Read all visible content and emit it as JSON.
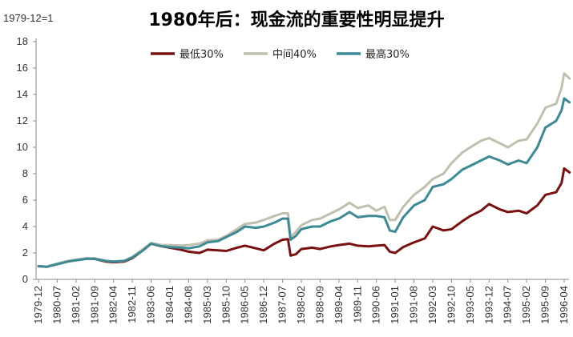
{
  "chart_data": {
    "type": "line",
    "title": "1980年后：现金流的重要性明显提升",
    "note": "1979-12=1",
    "xlabel": "",
    "ylabel": "",
    "ylim": [
      0,
      18
    ],
    "yticks": [
      0,
      2,
      4,
      6,
      8,
      10,
      12,
      14,
      16,
      18
    ],
    "grid": false,
    "legend": "top-center",
    "x_tick_labels": [
      "1979-12",
      "1980-07",
      "1981-02",
      "1981-09",
      "1982-04",
      "1982-11",
      "1983-06",
      "1984-01",
      "1984-08",
      "1985-03",
      "1985-10",
      "1986-05",
      "1986-12",
      "1987-07",
      "1988-02",
      "1988-09",
      "1989-04",
      "1989-11",
      "1990-06",
      "1991-01",
      "1991-08",
      "1992-03",
      "1992-10",
      "1993-05",
      "1993-12",
      "1994-07",
      "1995-02",
      "1995-09",
      "1996-04"
    ],
    "x": [
      "1979-12",
      "1980-03",
      "1980-07",
      "1980-11",
      "1981-02",
      "1981-06",
      "1981-09",
      "1982-01",
      "1982-04",
      "1982-08",
      "1982-11",
      "1983-03",
      "1983-06",
      "1983-10",
      "1984-01",
      "1984-05",
      "1984-08",
      "1984-12",
      "1985-03",
      "1985-07",
      "1985-10",
      "1986-02",
      "1986-05",
      "1986-09",
      "1986-12",
      "1987-04",
      "1987-07",
      "1987-09",
      "1987-10",
      "1987-12",
      "1988-02",
      "1988-06",
      "1988-09",
      "1989-01",
      "1989-04",
      "1989-08",
      "1989-11",
      "1990-03",
      "1990-06",
      "1990-09",
      "1990-11",
      "1991-01",
      "1991-04",
      "1991-08",
      "1991-12",
      "1992-03",
      "1992-07",
      "1992-10",
      "1993-02",
      "1993-05",
      "1993-09",
      "1993-12",
      "1994-04",
      "1994-07",
      "1994-11",
      "1995-02",
      "1995-06",
      "1995-09",
      "1996-01",
      "1996-03",
      "1996-04",
      "1996-06"
    ],
    "series": [
      {
        "name": "最低30%",
        "color": "#7a1010",
        "values": [
          1.0,
          0.95,
          1.15,
          1.35,
          1.45,
          1.6,
          1.55,
          1.35,
          1.3,
          1.35,
          1.6,
          2.2,
          2.7,
          2.5,
          2.4,
          2.25,
          2.1,
          2.0,
          2.25,
          2.2,
          2.15,
          2.4,
          2.55,
          2.35,
          2.2,
          2.7,
          3.0,
          3.05,
          1.8,
          1.9,
          2.3,
          2.4,
          2.3,
          2.5,
          2.6,
          2.7,
          2.55,
          2.5,
          2.55,
          2.6,
          2.1,
          2.0,
          2.45,
          2.8,
          3.1,
          4.0,
          3.7,
          3.8,
          4.4,
          4.8,
          5.2,
          5.7,
          5.3,
          5.1,
          5.2,
          5.0,
          5.6,
          6.4,
          6.6,
          7.3,
          8.4,
          8.1
        ]
      },
      {
        "name": "中间40%",
        "color": "#c0c0b0",
        "values": [
          1.0,
          0.95,
          1.2,
          1.4,
          1.5,
          1.6,
          1.6,
          1.4,
          1.35,
          1.4,
          1.7,
          2.3,
          2.75,
          2.6,
          2.6,
          2.55,
          2.6,
          2.7,
          2.95,
          3.0,
          3.3,
          3.8,
          4.2,
          4.3,
          4.5,
          4.8,
          5.0,
          5.0,
          3.2,
          3.6,
          4.1,
          4.5,
          4.6,
          5.0,
          5.3,
          5.8,
          5.4,
          5.6,
          5.2,
          5.5,
          4.5,
          4.5,
          5.5,
          6.4,
          7.0,
          7.6,
          8.0,
          8.8,
          9.6,
          10.0,
          10.5,
          10.7,
          10.3,
          10.0,
          10.5,
          10.6,
          11.8,
          13.0,
          13.3,
          14.5,
          15.6,
          15.2
        ]
      },
      {
        "name": "最高30%",
        "color": "#3d8a95",
        "values": [
          1.0,
          0.95,
          1.15,
          1.35,
          1.45,
          1.55,
          1.55,
          1.4,
          1.35,
          1.4,
          1.65,
          2.2,
          2.7,
          2.5,
          2.45,
          2.4,
          2.35,
          2.5,
          2.8,
          2.9,
          3.2,
          3.6,
          4.0,
          3.9,
          4.0,
          4.3,
          4.6,
          4.6,
          3.0,
          3.3,
          3.8,
          4.0,
          4.0,
          4.4,
          4.6,
          5.1,
          4.7,
          4.8,
          4.8,
          4.7,
          3.7,
          3.6,
          4.7,
          5.6,
          6.0,
          7.0,
          7.2,
          7.6,
          8.3,
          8.6,
          9.0,
          9.3,
          9.0,
          8.7,
          9.0,
          8.8,
          10.0,
          11.5,
          12.0,
          12.8,
          13.7,
          13.4
        ]
      }
    ]
  }
}
